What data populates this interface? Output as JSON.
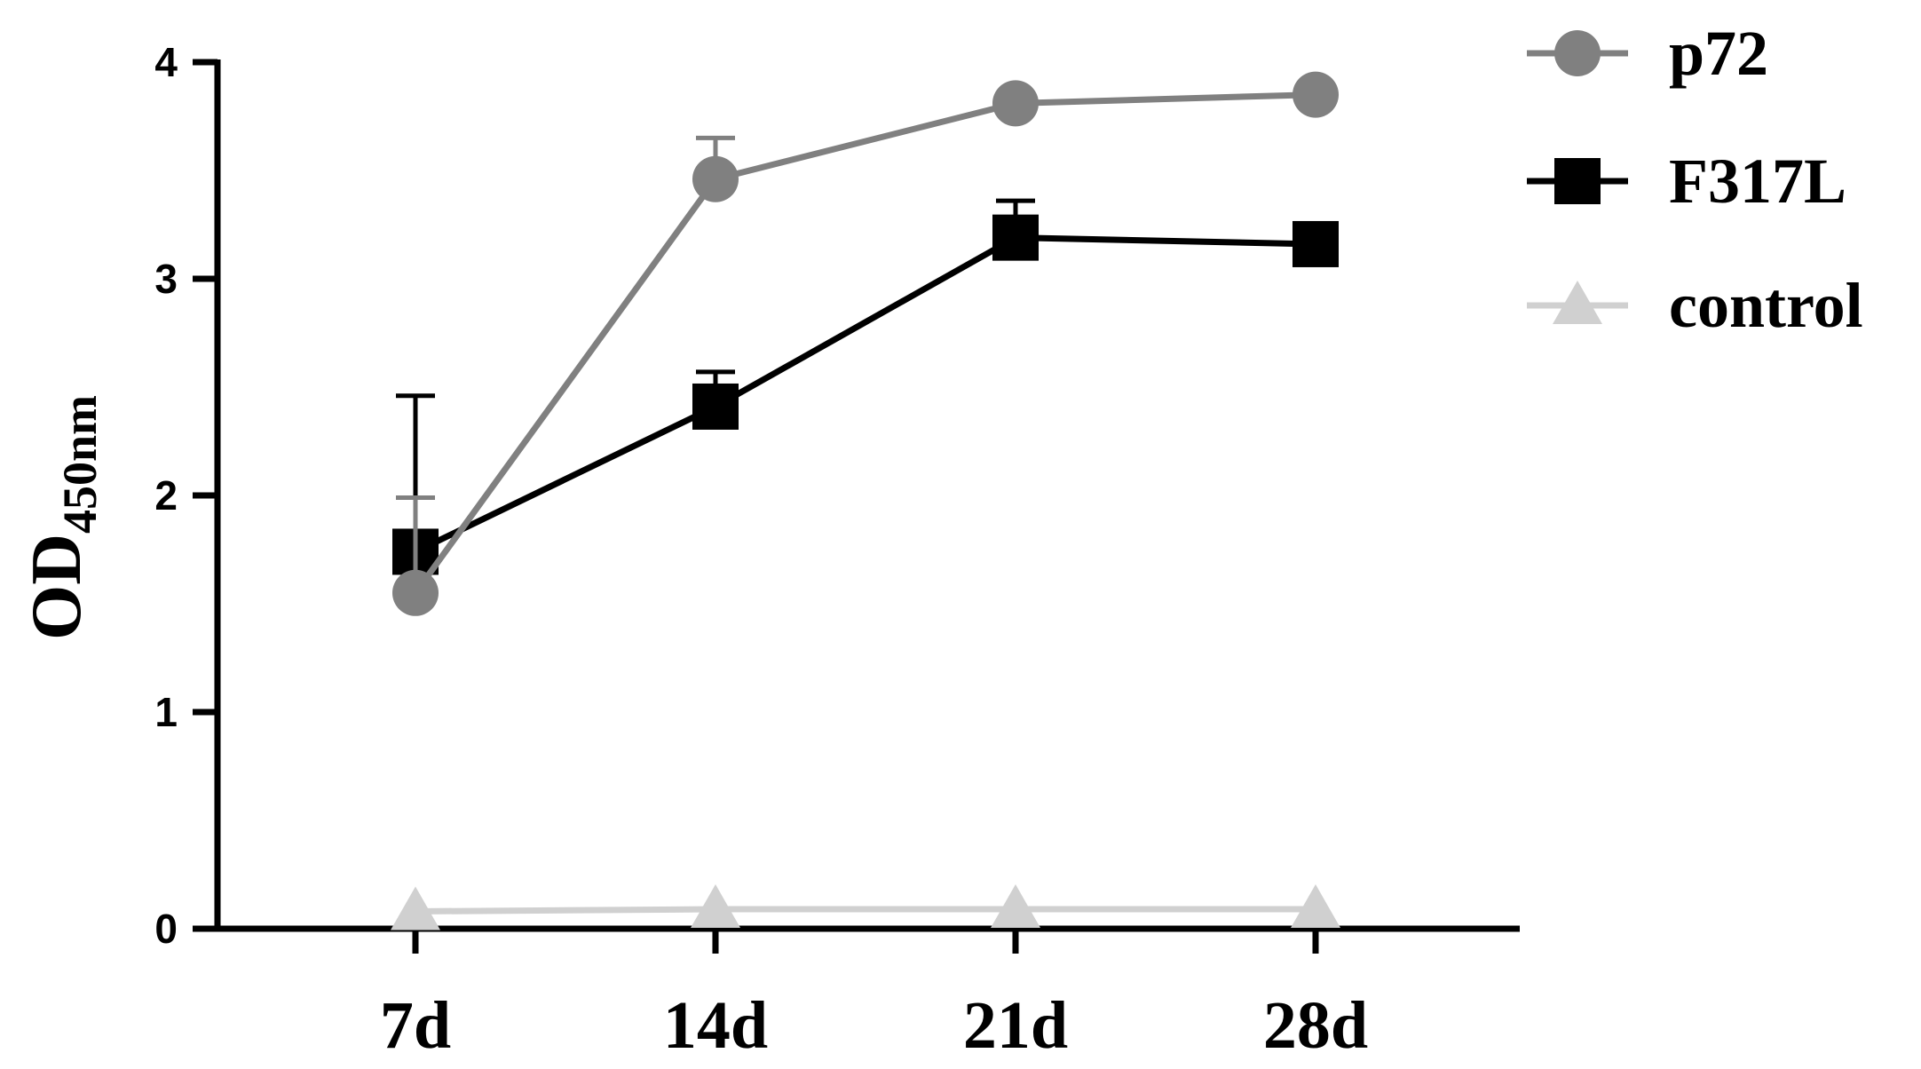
{
  "chart_data": {
    "type": "line",
    "categories": [
      "7d",
      "14d",
      "21d",
      "28d"
    ],
    "xlabel": "",
    "ylabel": {
      "main": "OD",
      "sub": "450nm"
    },
    "ylim": [
      0,
      4
    ],
    "yticks": [
      0,
      1,
      2,
      3,
      4
    ],
    "grid": false,
    "legend_position": "top-right",
    "series": [
      {
        "name": "p72",
        "marker": "circle",
        "color": "#808080",
        "values": [
          1.55,
          3.46,
          3.81,
          3.85
        ],
        "error_upper": [
          1.99,
          3.65,
          null,
          null
        ]
      },
      {
        "name": "F317L",
        "marker": "square",
        "color": "#000000",
        "values": [
          1.74,
          2.41,
          3.19,
          3.16
        ],
        "error_upper": [
          2.46,
          2.57,
          3.36,
          null
        ]
      },
      {
        "name": "control",
        "marker": "triangle",
        "color": "#d0d0d0",
        "values": [
          0.08,
          0.09,
          0.09,
          0.09
        ],
        "error_upper": [
          null,
          null,
          null,
          null
        ]
      }
    ]
  }
}
